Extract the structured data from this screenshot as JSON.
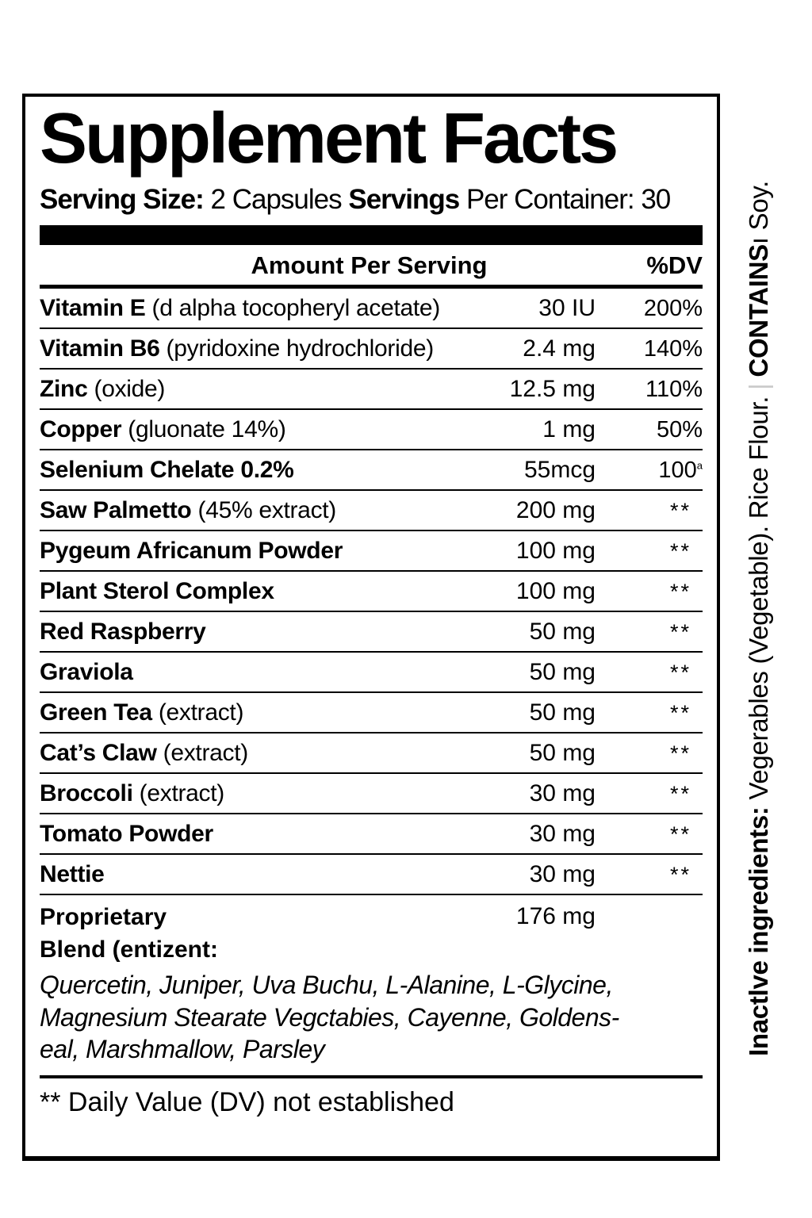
{
  "title": "Supplement Facts",
  "serving": {
    "size_label": "Serving Size:",
    "size_value": " 2 Capsules  ",
    "servings_label": "Servings",
    "servings_value": " Per Container: 30"
  },
  "columns": {
    "amount_header": "Amount Per Serving",
    "dv_header": "%DV"
  },
  "rows": [
    {
      "name": "Vitamin E ",
      "desc": "(d alpha tocopheryl acetate)",
      "amount": "30 IU",
      "dv": "200%"
    },
    {
      "name": "Vitamin B6 ",
      "desc": "(pyridoxine hydrochloride)",
      "amount": "2.4 mg",
      "dv": "140%"
    },
    {
      "name": "Zinc ",
      "desc": "(oxide)",
      "amount": "12.5 mg",
      "dv": "110%"
    },
    {
      "name": "Copper ",
      "desc": "(gluonate 14%)",
      "amount": "1 mg",
      "dv": "50%"
    },
    {
      "name": "Selenium Chelate 0.2%",
      "desc": "",
      "amount": "55mcg",
      "dv": "100",
      "dv_sup": "a"
    },
    {
      "name": "Saw Palmetto ",
      "desc": "(45% extract)",
      "amount": "200 mg",
      "dv": "**"
    },
    {
      "name": "Pygeum Africanum Powder",
      "desc": "",
      "amount": "100 mg",
      "dv": "**"
    },
    {
      "name": "Plant Sterol Complex",
      "desc": "",
      "amount": "100 mg",
      "dv": "**"
    },
    {
      "name": "Red Raspberry",
      "desc": "",
      "amount": "50 mg",
      "dv": "**"
    },
    {
      "name": "Graviola",
      "desc": "",
      "amount": "50 mg",
      "dv": "**"
    },
    {
      "name": "Green Tea ",
      "desc": "(extract)",
      "amount": "50 mg",
      "dv": "**"
    },
    {
      "name": "Cat’s Claw ",
      "desc": "(extract)",
      "amount": "50 mg",
      "dv": "**"
    },
    {
      "name": "Broccoli ",
      "desc": "(extract)",
      "amount": "30 mg",
      "dv": "**"
    },
    {
      "name": "Tomato Powder",
      "desc": "",
      "amount": "30 mg",
      "dv": "**"
    },
    {
      "name": "Nettie",
      "desc": "",
      "amount": "30 mg",
      "dv": "**"
    }
  ],
  "proprietary": {
    "name_line1": "Proprietary",
    "name_line2": "Blend (entizent:",
    "amount": "176 mg",
    "lines": [
      "Quercetin, Juniper, Uva Buchu, L-Alanine, L-Glycine,",
      "Magnesium Stearate Vegctabies, Cayenne, Goldens-",
      "eal, Marshmallow, Parsley"
    ]
  },
  "footnote": "** Daily Value (DV) not established",
  "side_text": {
    "inactive_label": "Inactlve ingredients: ",
    "inactive_value": "Vegerables (Vegetable). Rice Flour.",
    "divider": "|",
    "contains_label": "CONTAINS",
    "contains_value": "ı Soy."
  }
}
